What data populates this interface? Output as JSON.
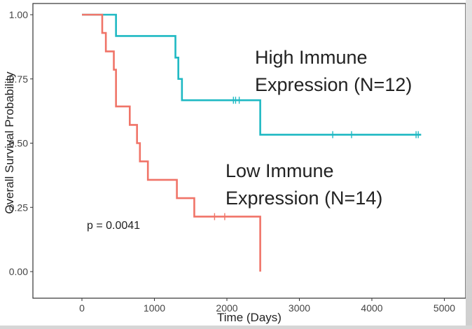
{
  "chart_data": {
    "type": "step",
    "title": "",
    "xlabel": "Time (Days)",
    "ylabel": "Overall Survival Probability",
    "xlim": [
      -500,
      5100
    ],
    "ylim": [
      -0.03,
      1.02
    ],
    "x_ticks": [
      0,
      1000,
      2000,
      3000,
      4000,
      5000
    ],
    "x_tick_labels": [
      "0",
      "1000",
      "2000",
      "3000",
      "4000",
      "5000"
    ],
    "y_ticks": [
      0,
      0.25,
      0.5,
      0.75,
      1.0
    ],
    "y_tick_labels": [
      "0.00",
      "0.25",
      "0.50",
      "0.75",
      "1.00"
    ],
    "grid": false,
    "series": [
      {
        "name": "High Immune Expression (N=12)",
        "color": "#1fb9c3",
        "steps": [
          [
            0,
            1.0
          ],
          [
            470,
            0.917
          ],
          [
            1290,
            0.833
          ],
          [
            1330,
            0.75
          ],
          [
            1380,
            0.667
          ],
          [
            2460,
            0.533
          ],
          [
            4680,
            0.533
          ]
        ],
        "censored": [
          [
            2090,
            0.667
          ],
          [
            2120,
            0.667
          ],
          [
            2170,
            0.667
          ],
          [
            3460,
            0.533
          ],
          [
            3720,
            0.533
          ],
          [
            4610,
            0.533
          ],
          [
            4640,
            0.533
          ]
        ]
      },
      {
        "name": "Low Immune Expression (N=14)",
        "color": "#f07468",
        "steps": [
          [
            0,
            1.0
          ],
          [
            280,
            0.929
          ],
          [
            330,
            0.857
          ],
          [
            440,
            0.786
          ],
          [
            470,
            0.643
          ],
          [
            660,
            0.571
          ],
          [
            760,
            0.5
          ],
          [
            800,
            0.429
          ],
          [
            910,
            0.357
          ],
          [
            1310,
            0.286
          ],
          [
            1550,
            0.214
          ],
          [
            2460,
            0.0
          ]
        ],
        "censored": [
          [
            1830,
            0.214
          ],
          [
            1970,
            0.214
          ]
        ]
      }
    ],
    "annotations": [
      {
        "text": "p = 0.0041"
      },
      {
        "text_lines": [
          "High Immune",
          "Expression (N=12)"
        ]
      },
      {
        "text_lines": [
          "Low Immune",
          "Expression (N=14)"
        ]
      }
    ]
  }
}
